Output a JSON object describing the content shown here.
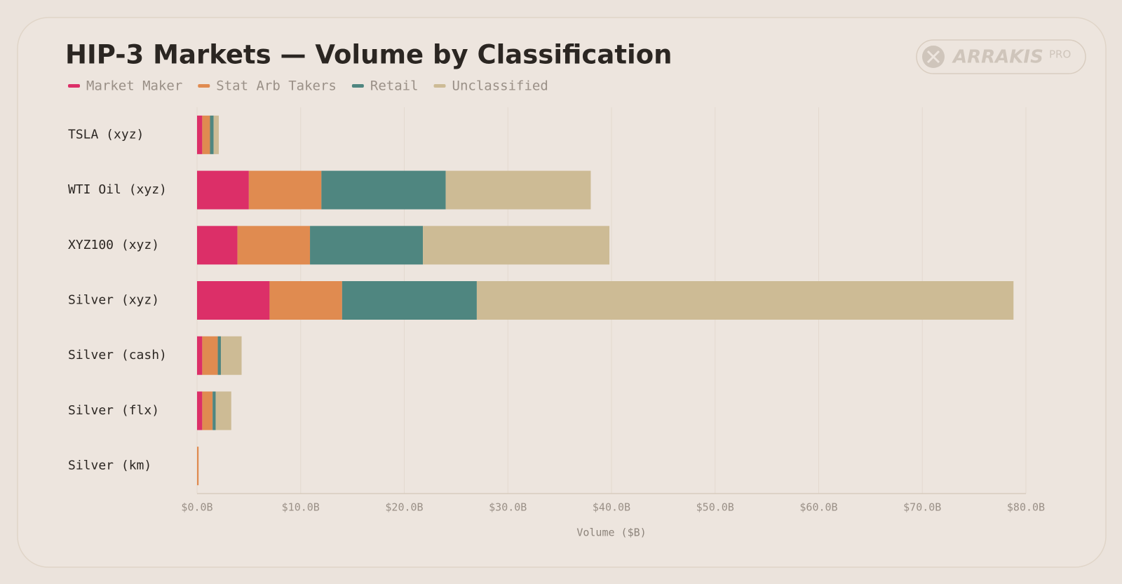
{
  "chart_data": {
    "type": "stacked_barh",
    "title": "HIP-3 Markets — Volume by Classification",
    "x_label": "Volume ($B)",
    "categories": [
      "TSLA (xyz)",
      "WTI Oil (xyz)",
      "XYZ100 (xyz)",
      "Silver (xyz)",
      "Silver (cash)",
      "Silver (flx)",
      "Silver (km)"
    ],
    "series": [
      {
        "name": "Market Maker",
        "color": "#dc2f68",
        "values": [
          0.5,
          5.0,
          3.9,
          7.0,
          0.5,
          0.5,
          0
        ]
      },
      {
        "name": "Stat Arb Takers",
        "color": "#e08b50",
        "values": [
          0.75,
          7.0,
          7.0,
          7.0,
          1.5,
          1.0,
          0.15
        ]
      },
      {
        "name": "Retail",
        "color": "#4f8680",
        "values": [
          0.35,
          12.0,
          10.9,
          13.0,
          0.3,
          0.3,
          0
        ]
      },
      {
        "name": "Unclassified",
        "color": "#cdbb95",
        "values": [
          0.5,
          14.0,
          18.0,
          51.8,
          2.0,
          1.5,
          0
        ]
      }
    ],
    "xlim": [
      0,
      80
    ],
    "xticks": [
      {
        "value": 0,
        "label": "$0.0B"
      },
      {
        "value": 10,
        "label": "$10.0B"
      },
      {
        "value": 20,
        "label": "$20.0B"
      },
      {
        "value": 30,
        "label": "$30.0B"
      },
      {
        "value": 40,
        "label": "$40.0B"
      },
      {
        "value": 50,
        "label": "$50.0B"
      },
      {
        "value": 60,
        "label": "$60.0B"
      },
      {
        "value": 70,
        "label": "$70.0B"
      },
      {
        "value": 80,
        "label": "$80.0B"
      }
    ],
    "grid": true,
    "legend": "top-left"
  },
  "brand": {
    "name": "ARRAKIS",
    "tag": "PRO"
  }
}
